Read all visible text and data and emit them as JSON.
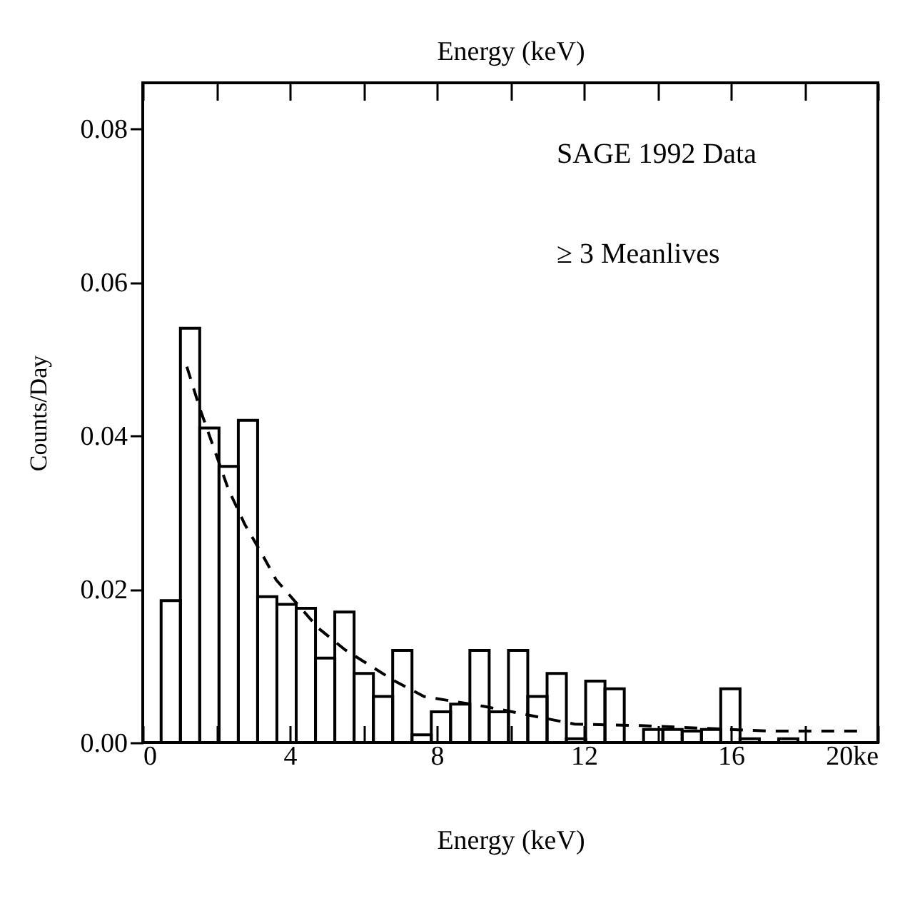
{
  "chart_data": {
    "type": "histogram",
    "xlabel": "Energy (keV)",
    "x2label": "Energy (keV)",
    "ylabel": "Counts/Day",
    "annotations": [
      "SAGE 1992 Data",
      "≥ 3 Meanlives"
    ],
    "color": "#000000",
    "bins": [
      0.5,
      1.025,
      1.55,
      2.075,
      2.6,
      3.125,
      3.65,
      4.175,
      4.7,
      5.225,
      5.75,
      6.275,
      6.8,
      7.325,
      7.85,
      8.375,
      8.9,
      9.425,
      9.95,
      10.475,
      11.0,
      11.525,
      12.05,
      12.575,
      13.1,
      13.625,
      14.15,
      14.675,
      15.2,
      15.725,
      16.25,
      16.775,
      17.3,
      17.825
    ],
    "values": [
      0.0185,
      0.054,
      0.041,
      0.036,
      0.042,
      0.019,
      0.018,
      0.0175,
      0.011,
      0.017,
      0.009,
      0.006,
      0.012,
      0.001,
      0.004,
      0.005,
      0.012,
      0.004,
      0.012,
      0.006,
      0.009,
      0.0005,
      0.008,
      0.007,
      0,
      0.0017,
      0.0017,
      0.0015,
      0.0017,
      0.007,
      0.0005,
      0,
      0.0005
    ],
    "series": [
      {
        "type": "line",
        "line_style": "dashed",
        "color": "#000000",
        "x": [
          1.2,
          1.55,
          2.33,
          2.78,
          3.24,
          3.63,
          4.78,
          5.5,
          6.86,
          7.65,
          9.3,
          11.75,
          13.55,
          17,
          19.5
        ],
        "values": [
          0.049,
          0.0436,
          0.033,
          0.0284,
          0.0246,
          0.0212,
          0.0149,
          0.0121,
          0.008,
          0.006,
          0.0047,
          0.0024,
          0.0022,
          0.0015,
          0.0015
        ]
      }
    ],
    "xlim": [
      0,
      20
    ],
    "ylim": [
      0,
      0.086
    ],
    "xticks": [
      0,
      {
        "value": 2,
        "label": null
      },
      4,
      {
        "value": 6,
        "label": null
      },
      8,
      {
        "value": 10,
        "label": null
      },
      12,
      {
        "value": 14,
        "label": null
      },
      16,
      {
        "value": 18,
        "label": null
      },
      {
        "value": 20,
        "label": "20ke"
      }
    ],
    "yticks": [
      {
        "value": 0,
        "label": "0.00"
      },
      {
        "value": 0.02,
        "label": "0.02"
      },
      {
        "value": 0.04,
        "label": "0.04"
      },
      {
        "value": 0.06,
        "label": "0.06"
      },
      {
        "value": 0.08,
        "label": "0.08"
      }
    ]
  }
}
